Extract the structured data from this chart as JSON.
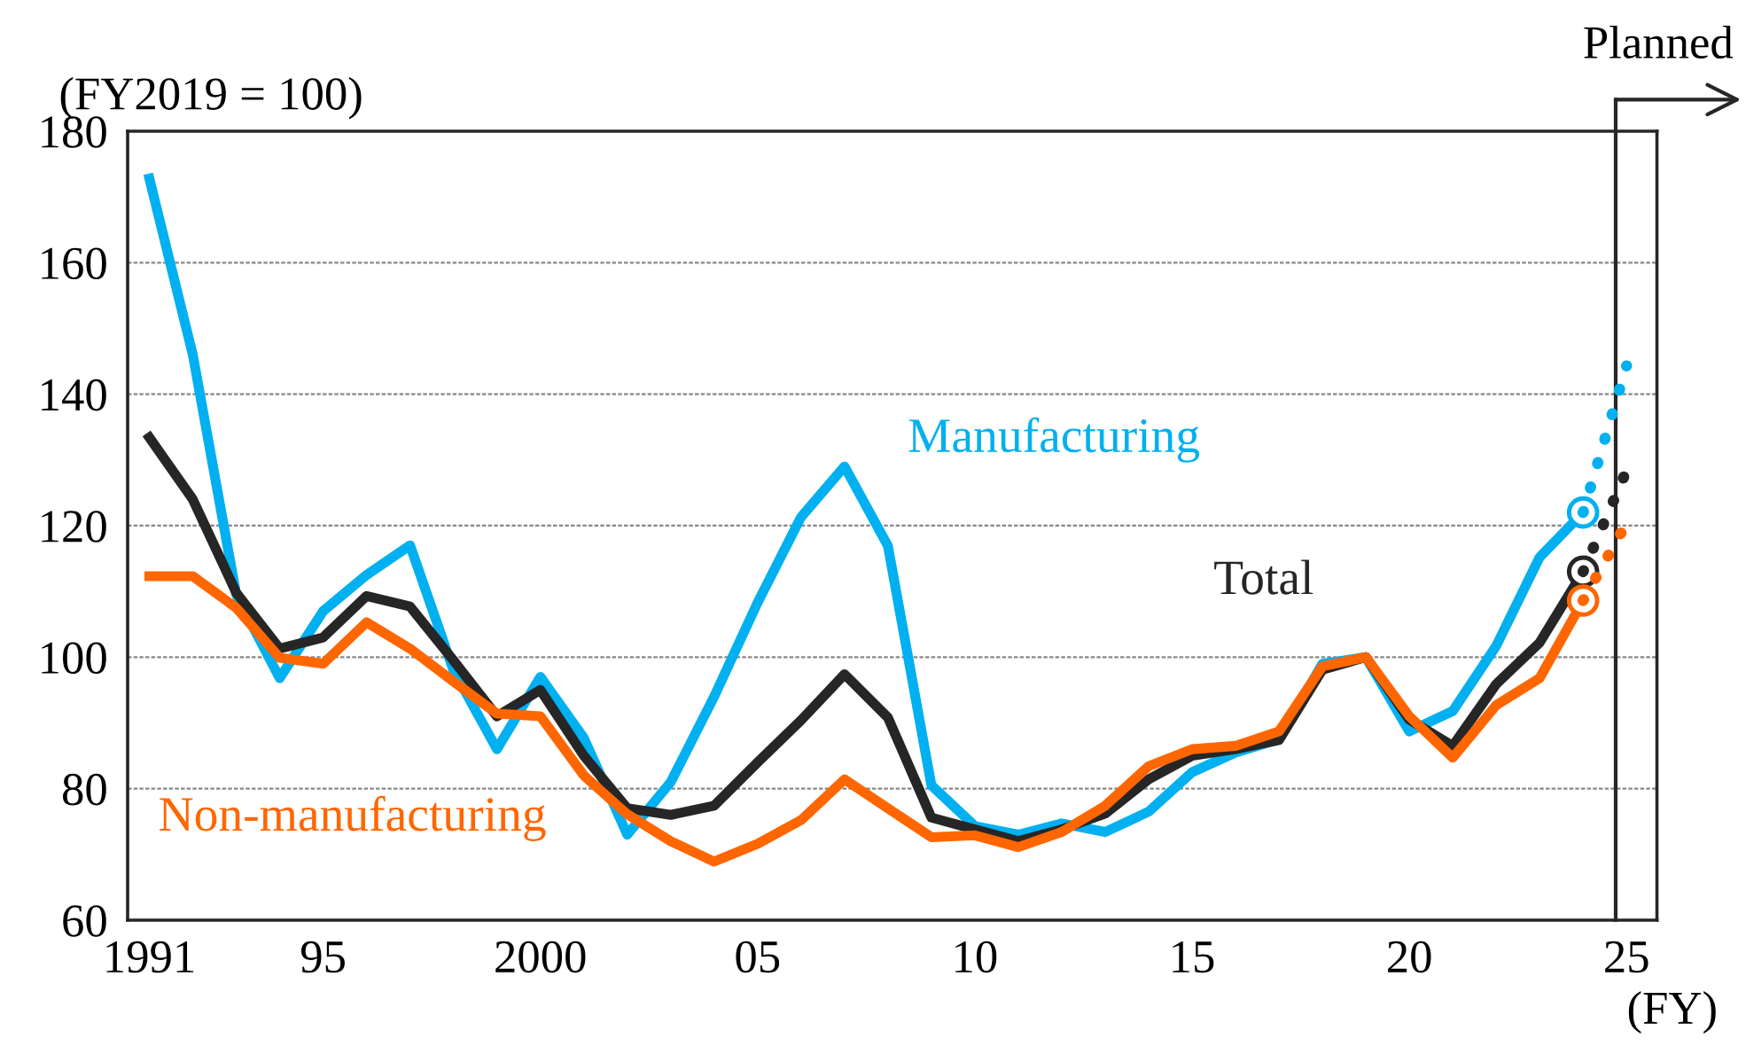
{
  "chart_data": {
    "type": "line",
    "annotations": [
      "(FY2019 = 100)"
    ],
    "xlabel": "(FY)",
    "x": [
      1991,
      1992,
      1993,
      1994,
      1995,
      1996,
      1997,
      1998,
      1999,
      2000,
      2001,
      2002,
      2003,
      2004,
      2005,
      2006,
      2007,
      2008,
      2009,
      2010,
      2011,
      2012,
      2013,
      2014,
      2015,
      2016,
      2017,
      2018,
      2019,
      2020,
      2021,
      2022,
      2023,
      2024,
      2025
    ],
    "series": [
      {
        "name": "Manufacturing",
        "color": "#00b0f0",
        "values": [
          172.8,
          146,
          109.5,
          96.8,
          107,
          112.5,
          117,
          98,
          86,
          97,
          87.7,
          73,
          81,
          94,
          108.3,
          121.3,
          129,
          116.9,
          80.5,
          74.3,
          73,
          74.7,
          73.4,
          76.5,
          82.5,
          85.5,
          87.5,
          99,
          100,
          88.7,
          91.8,
          101.7,
          115.2,
          122,
          null
        ]
      },
      {
        "name": "Total",
        "color": "#262626",
        "values": [
          133.4,
          124,
          109.8,
          101.3,
          103,
          109.3,
          107.7,
          99.5,
          91,
          95,
          85,
          77,
          76,
          77.4,
          84,
          90.4,
          97.4,
          90.8,
          75.6,
          73.8,
          72,
          73.8,
          76.2,
          81.4,
          85,
          86,
          87.4,
          98.1,
          100,
          90.5,
          86.5,
          95.9,
          102.2,
          113,
          null
        ]
      },
      {
        "name": "Non-manufacturing",
        "color": "#ff6600",
        "values": [
          112.3,
          112.3,
          107.5,
          99.9,
          99,
          105.3,
          101.3,
          96.3,
          91.4,
          91,
          82,
          76.1,
          72,
          68.9,
          71.6,
          75.2,
          81.4,
          77,
          72.6,
          72.9,
          71.1,
          73.4,
          77.4,
          83.4,
          86,
          86.5,
          88.7,
          98.6,
          100,
          91,
          84.7,
          92.7,
          96.8,
          108.6,
          null
        ]
      },
      {
        "type": "line",
        "line_style": "dotted",
        "color": "#00b0f0",
        "values": [
          null,
          null,
          null,
          null,
          null,
          null,
          null,
          null,
          null,
          null,
          null,
          null,
          null,
          null,
          null,
          null,
          null,
          null,
          null,
          null,
          null,
          null,
          null,
          null,
          null,
          null,
          null,
          null,
          null,
          null,
          null,
          null,
          null,
          122,
          144.3
        ]
      },
      {
        "type": "line",
        "line_style": "dotted",
        "color": "#262626",
        "values": [
          null,
          null,
          null,
          null,
          null,
          null,
          null,
          null,
          null,
          null,
          null,
          null,
          null,
          null,
          null,
          null,
          null,
          null,
          null,
          null,
          null,
          null,
          null,
          null,
          null,
          null,
          null,
          null,
          null,
          null,
          null,
          null,
          null,
          113,
          128.4
        ]
      },
      {
        "type": "line",
        "line_style": "dotted",
        "color": "#ff6600",
        "values": [
          null,
          null,
          null,
          null,
          null,
          null,
          null,
          null,
          null,
          null,
          null,
          null,
          null,
          null,
          null,
          null,
          null,
          null,
          null,
          null,
          null,
          null,
          null,
          null,
          null,
          null,
          null,
          null,
          null,
          null,
          null,
          null,
          null,
          108.6,
          120.4
        ]
      },
      {
        "type": "scatter",
        "marker": "circle",
        "color": "#00b0f0",
        "values": [
          null,
          null,
          null,
          null,
          null,
          null,
          null,
          null,
          null,
          null,
          null,
          null,
          null,
          null,
          null,
          null,
          null,
          null,
          null,
          null,
          null,
          null,
          null,
          null,
          null,
          null,
          null,
          null,
          null,
          null,
          null,
          null,
          null,
          122,
          null
        ]
      },
      {
        "type": "scatter",
        "marker": "circle",
        "color": "#262626",
        "values": [
          null,
          null,
          null,
          null,
          null,
          null,
          null,
          null,
          null,
          null,
          null,
          null,
          null,
          null,
          null,
          null,
          null,
          null,
          null,
          null,
          null,
          null,
          null,
          null,
          null,
          null,
          null,
          null,
          null,
          null,
          null,
          null,
          null,
          113,
          null
        ]
      },
      {
        "type": "scatter",
        "marker": "circle",
        "color": "#ff6600",
        "values": [
          null,
          null,
          null,
          null,
          null,
          null,
          null,
          null,
          null,
          null,
          null,
          null,
          null,
          null,
          null,
          null,
          null,
          null,
          null,
          null,
          null,
          null,
          null,
          null,
          null,
          null,
          null,
          null,
          null,
          null,
          null,
          null,
          null,
          108.6,
          null
        ]
      }
    ],
    "xlim": [
      1990.5,
      2025.7
    ],
    "xticks": [
      {
        "value": 1991,
        "label": "1991"
      },
      {
        "value": 1995,
        "label": "95"
      },
      {
        "value": 2000,
        "label": "2000"
      },
      {
        "value": 2005,
        "label": "05"
      },
      {
        "value": 2010,
        "label": "10"
      },
      {
        "value": 2015,
        "label": "15"
      },
      {
        "value": 2020,
        "label": "20"
      },
      {
        "value": 2025,
        "label": "25"
      }
    ],
    "ylim": [
      60,
      180
    ],
    "yticks": [
      60,
      80,
      100,
      120,
      140,
      160,
      180
    ],
    "grid": "y",
    "legend": false,
    "line_style": "solid",
    "marker": "none",
    "ref_lines": [
      {
        "axis": "x",
        "value": 2024.75,
        "label": "Planned",
        "color": "#262626"
      }
    ]
  }
}
